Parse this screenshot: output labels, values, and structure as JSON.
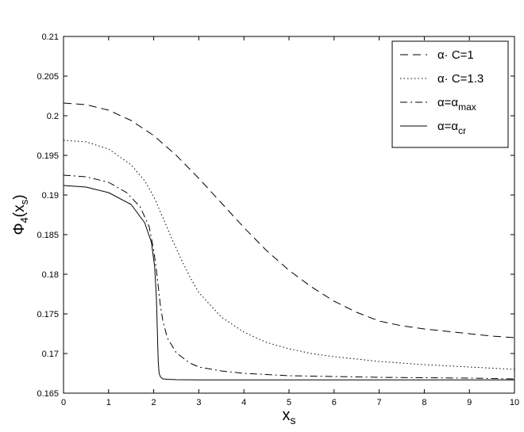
{
  "chart_data": {
    "type": "line",
    "xlabel": {
      "main": "x",
      "sub": "s"
    },
    "ylabel": {
      "pre": "Φ",
      "sub": "4",
      "mid": "(x",
      "sub2": "s",
      "post": ")"
    },
    "xlim": [
      0,
      10
    ],
    "ylim": [
      0.165,
      0.21
    ],
    "xticks": [
      "0",
      "1",
      "2",
      "3",
      "4",
      "5",
      "6",
      "7",
      "8",
      "9",
      "10"
    ],
    "yticks": [
      "0.165",
      "0.17",
      "0.175",
      "0.18",
      "0.185",
      "0.19",
      "0.195",
      "0.2",
      "0.205",
      "0.21"
    ],
    "grid": false,
    "legend_position": "top-right",
    "series": [
      {
        "id": "c1",
        "legend": {
          "text": "α· C=1"
        },
        "style": "dashed",
        "color": "#000000",
        "x": [
          0,
          0.5,
          1,
          1.5,
          2,
          2.5,
          3,
          3.5,
          4,
          4.5,
          5,
          5.5,
          6,
          6.5,
          7,
          7.5,
          8,
          8.5,
          9,
          9.5,
          10
        ],
        "y": [
          0.2016,
          0.2014,
          0.2007,
          0.1994,
          0.1975,
          0.195,
          0.1921,
          0.189,
          0.1859,
          0.183,
          0.1805,
          0.1784,
          0.1766,
          0.1752,
          0.1741,
          0.1735,
          0.1731,
          0.1728,
          0.1725,
          0.1722,
          0.172
        ]
      },
      {
        "id": "c13",
        "legend": {
          "text": "α· C=1.3"
        },
        "style": "dotted",
        "color": "#000000",
        "x": [
          0,
          0.5,
          1,
          1.5,
          1.8,
          2,
          2.2,
          2.4,
          2.6,
          2.8,
          3,
          3.5,
          4,
          4.5,
          5,
          5.5,
          6,
          7,
          8,
          9,
          10
        ],
        "y": [
          0.1969,
          0.1967,
          0.1958,
          0.1938,
          0.1918,
          0.1898,
          0.1872,
          0.1845,
          0.182,
          0.1797,
          0.1777,
          0.1746,
          0.1727,
          0.1714,
          0.1706,
          0.17,
          0.1696,
          0.169,
          0.1686,
          0.1683,
          0.168
        ]
      },
      {
        "id": "cmax",
        "legend": {
          "pre": "α=α",
          "sub": "max"
        },
        "style": "dashdot",
        "color": "#000000",
        "x": [
          0,
          0.5,
          1,
          1.4,
          1.7,
          1.9,
          2.0,
          2.05,
          2.1,
          2.15,
          2.2,
          2.3,
          2.5,
          2.8,
          3,
          3.5,
          4,
          5,
          6,
          7,
          8,
          9,
          10
        ],
        "y": [
          0.1925,
          0.1923,
          0.1916,
          0.1903,
          0.1885,
          0.186,
          0.183,
          0.181,
          0.1785,
          0.176,
          0.1742,
          0.172,
          0.1701,
          0.1688,
          0.1683,
          0.1678,
          0.1675,
          0.1672,
          0.1671,
          0.167,
          0.16695,
          0.1669,
          0.1668
        ]
      },
      {
        "id": "ccr",
        "legend": {
          "pre": "α=α",
          "sub": "cr"
        },
        "style": "solid",
        "color": "#000000",
        "x": [
          0,
          0.5,
          1,
          1.5,
          1.8,
          1.95,
          2.02,
          2.06,
          2.08,
          2.1,
          2.12,
          2.15,
          2.2,
          2.3,
          2.5,
          3,
          4,
          6,
          8,
          10
        ],
        "y": [
          0.1912,
          0.191,
          0.1903,
          0.1888,
          0.1865,
          0.184,
          0.181,
          0.177,
          0.173,
          0.169,
          0.1675,
          0.16705,
          0.1668,
          0.16675,
          0.1667,
          0.16668,
          0.16667,
          0.16667,
          0.16667,
          0.16667
        ]
      }
    ]
  }
}
